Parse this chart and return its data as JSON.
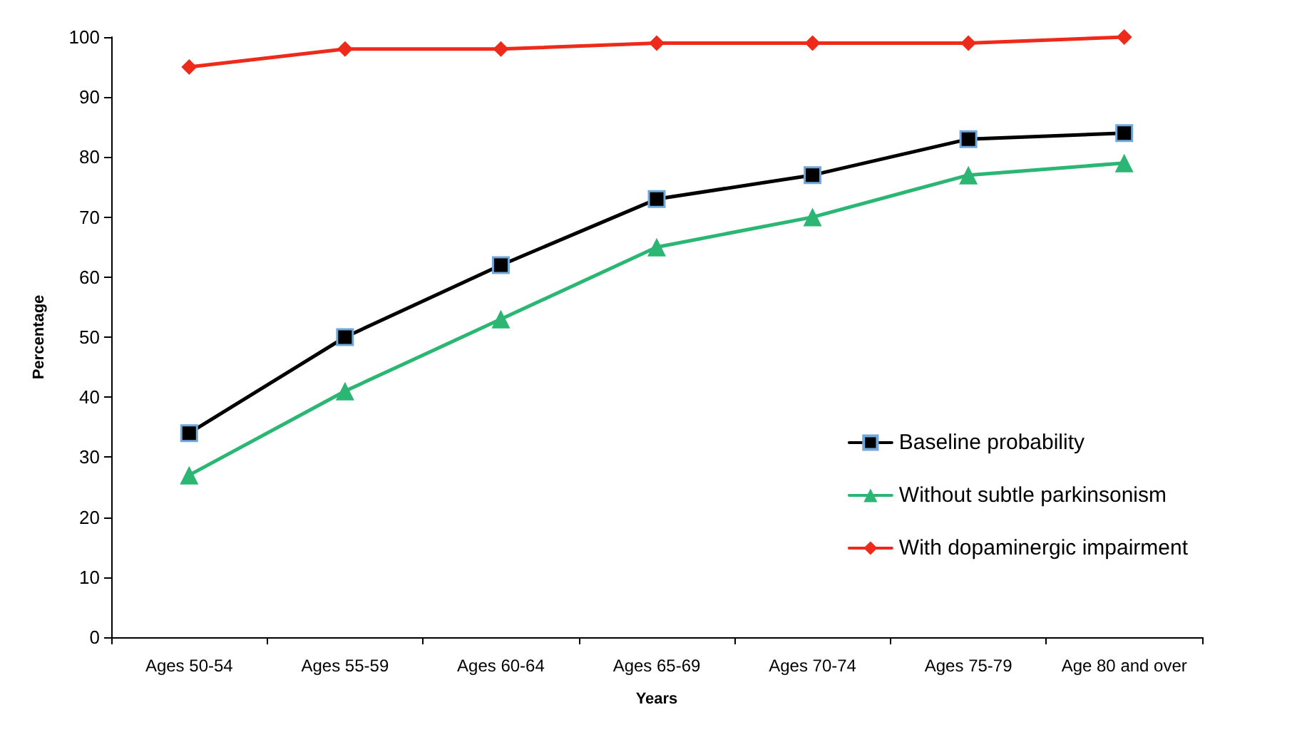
{
  "chart_data": {
    "type": "line",
    "xlabel": "Years",
    "ylabel": "Percentage",
    "categories": [
      "Ages 50-54",
      "Ages 55-59",
      "Ages 60-64",
      "Ages 65-69",
      "Ages 70-74",
      "Ages 75-79",
      "Age 80 and over"
    ],
    "series": [
      {
        "name": "Baseline probability",
        "color": "#000000",
        "marker": "square",
        "values": [
          34,
          50,
          62,
          73,
          77,
          83,
          84
        ]
      },
      {
        "name": "Without subtle parkinsonism",
        "color": "#2bb673",
        "marker": "triangle",
        "values": [
          27,
          41,
          53,
          65,
          70,
          77,
          79
        ]
      },
      {
        "name": "With dopaminergic impairment",
        "color": "#ee2a1b",
        "marker": "diamond",
        "values": [
          95,
          98,
          98,
          99,
          99,
          99,
          100
        ]
      }
    ],
    "ylim": [
      0,
      100
    ],
    "yticks": [
      0,
      10,
      20,
      30,
      40,
      50,
      60,
      70,
      80,
      90,
      100
    ],
    "grid": false,
    "legend": "bottom right",
    "line_style": "solid"
  }
}
